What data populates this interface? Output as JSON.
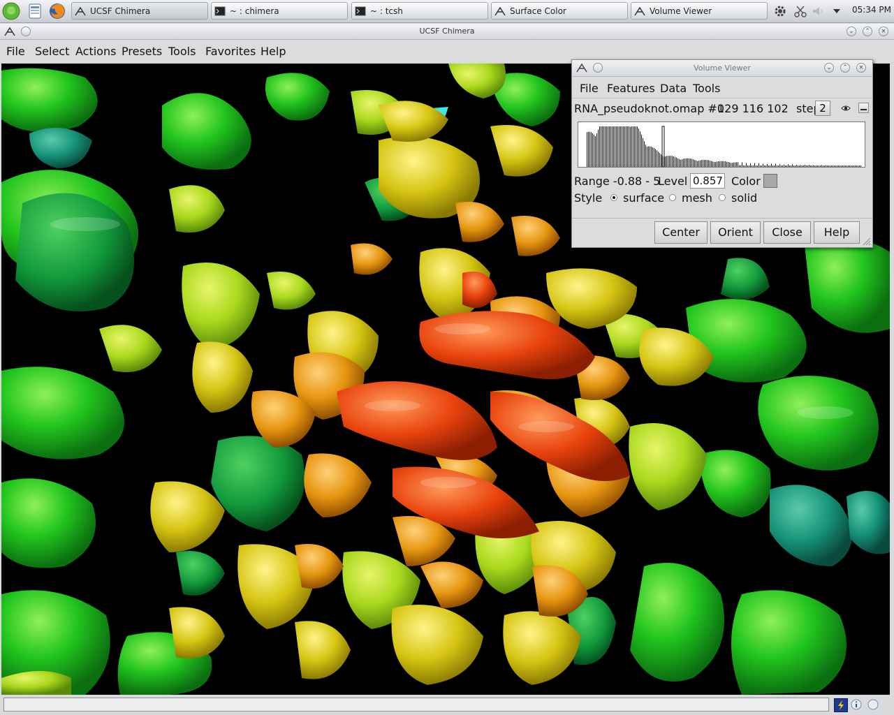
{
  "taskbar": {
    "tasks": [
      {
        "label": "UCSF Chimera"
      },
      {
        "label": "~ : chimera"
      },
      {
        "label": "~ : tcsh"
      },
      {
        "label": "Surface Color"
      },
      {
        "label": "Volume Viewer"
      }
    ],
    "clock": "05:34 PM"
  },
  "window": {
    "title": "UCSF Chimera",
    "menu": [
      "File",
      "Select",
      "Actions",
      "Presets",
      "Tools",
      "Favorites",
      "Help"
    ]
  },
  "volume_viewer": {
    "title": "Volume Viewer",
    "menu": [
      "File",
      "Features",
      "Data",
      "Tools"
    ],
    "map_name": "RNA_pseudoknot.omap #0",
    "dimensions": "129 116 102",
    "step_label": "step",
    "step_value": "2",
    "range_text": "Range  -0.88 - 5",
    "level_label": "Level",
    "level_value": "0.857",
    "color_label": "Color",
    "color_value": "#a9a9a9",
    "style_label": "Style",
    "style_options": [
      "surface",
      "mesh",
      "solid"
    ],
    "style_selected": "surface",
    "buttons": [
      "Center",
      "Orient",
      "Close",
      "Help"
    ]
  },
  "colors": {
    "surface_red": "#e8420c",
    "surface_orange": "#ec9612",
    "surface_yellow": "#d8d318",
    "surface_green": "#1ec51f",
    "surface_teal": "#16947a",
    "surface_cyan": "#3fe6e6"
  }
}
